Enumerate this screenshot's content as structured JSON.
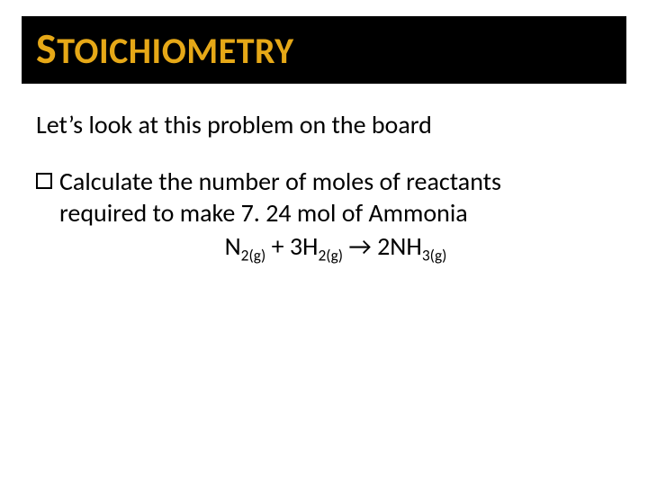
{
  "title": {
    "cap": "S",
    "rest": "TOICHIOMETRY",
    "color": "#e6a817",
    "bg": "#000000"
  },
  "intro": "Let’s look at this problem on the board",
  "bullet": {
    "line1": "Calculate the number of moles of reactants",
    "line2": "required to make 7. 24 mol of Ammonia"
  },
  "equation": {
    "t1": "N",
    "s1": "2(g)",
    "t2": " + 3H",
    "s2": "2(g)",
    "arrow_glyph": "→",
    "t3": " 2NH",
    "s3": "3(g)"
  },
  "styling": {
    "body_bg": "#ffffff",
    "text_color": "#000000",
    "title_fontsize_small": 40,
    "title_fontsize_cap": 48,
    "body_fontsize": 28,
    "slide_width": 720,
    "slide_height": 540
  }
}
